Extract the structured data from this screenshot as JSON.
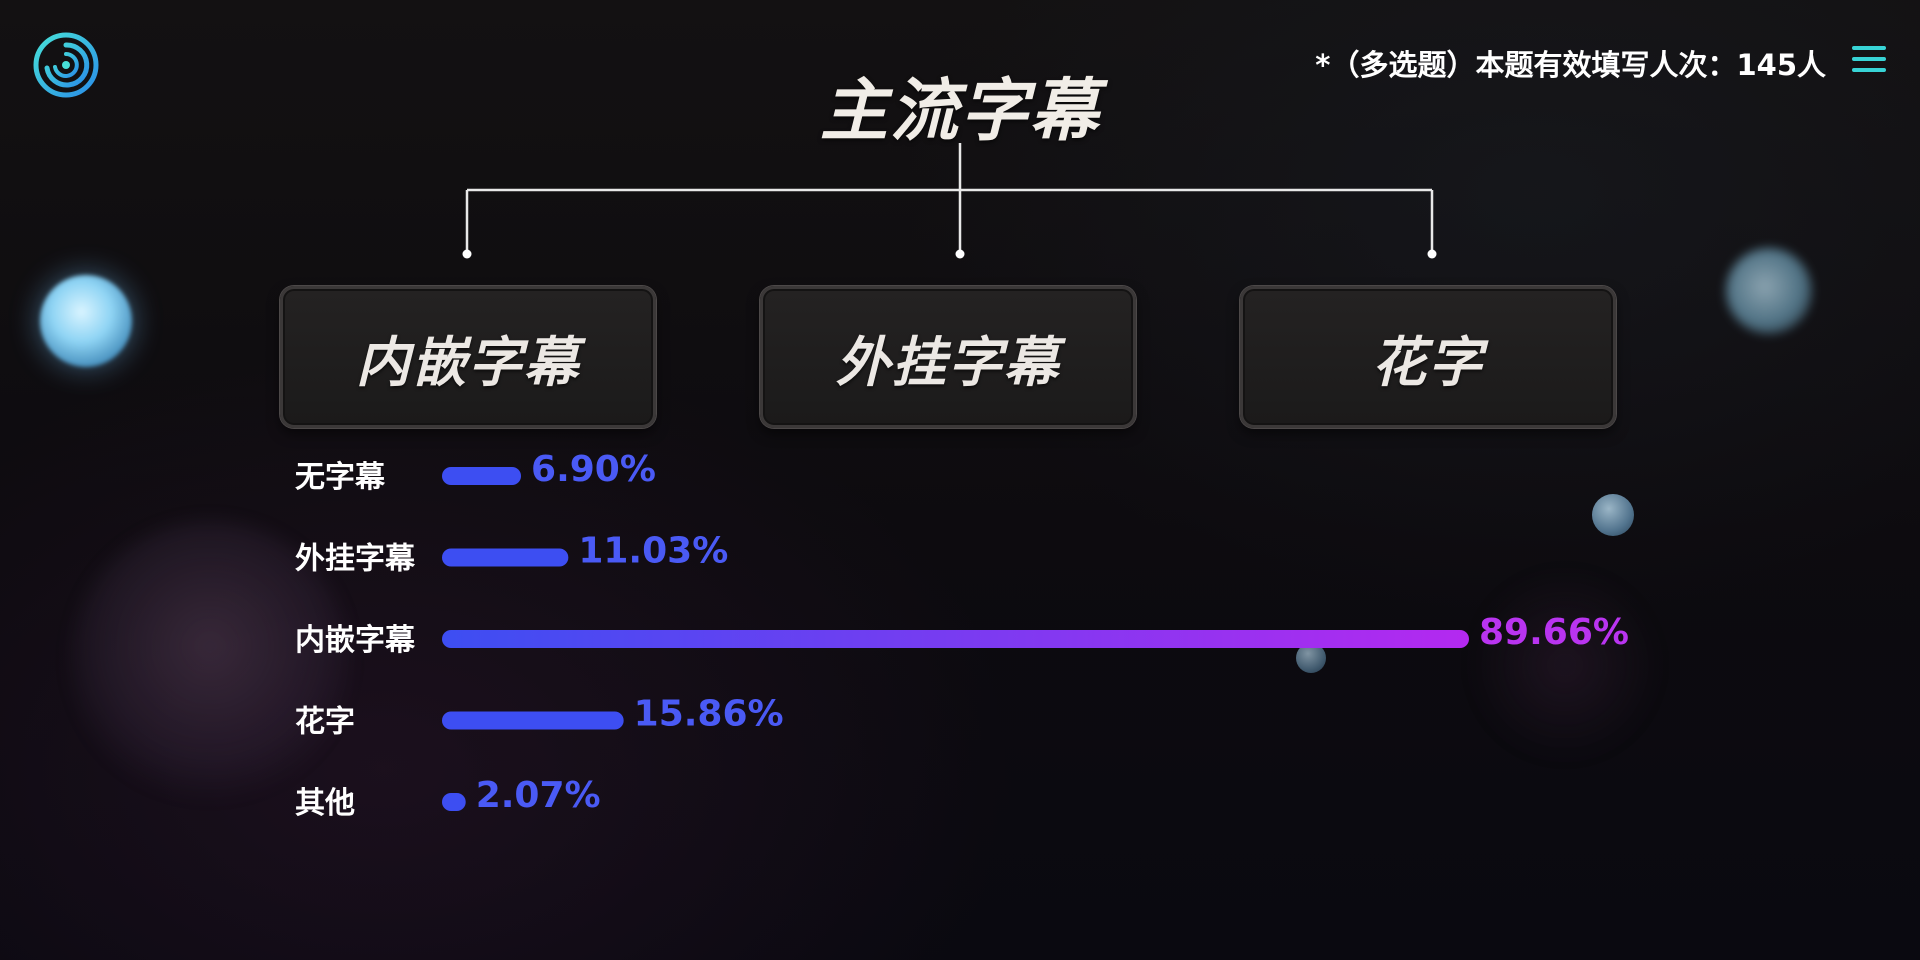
{
  "header": {
    "title": "主流字幕",
    "note": "*（多选题）本题有效填写人次：145人"
  },
  "icons": {
    "logo": "spiral-logo-icon",
    "menu": "hamburger-menu-icon"
  },
  "categories": [
    "内嵌字幕",
    "外挂字幕",
    "花字"
  ],
  "colors": {
    "bar_blue": "#3d4ef2",
    "bar_gradient_end": "#b429f0",
    "label_blue": "#4a5af5",
    "label_highlight": "#b934f0",
    "menu_teal": "#38d4d6"
  },
  "chart_data": {
    "type": "bar",
    "orientation": "horizontal",
    "categories": [
      "无字幕",
      "外挂字幕",
      "内嵌字幕",
      "花字",
      "其他"
    ],
    "values": [
      6.9,
      11.03,
      89.66,
      15.86,
      2.07
    ],
    "value_labels": [
      "6.90%",
      "11.03%",
      "89.66%",
      "15.86%",
      "2.07%"
    ],
    "unit": "%",
    "xlim": [
      0,
      100
    ],
    "title": "",
    "xlabel": "",
    "ylabel": "",
    "grid": false
  }
}
